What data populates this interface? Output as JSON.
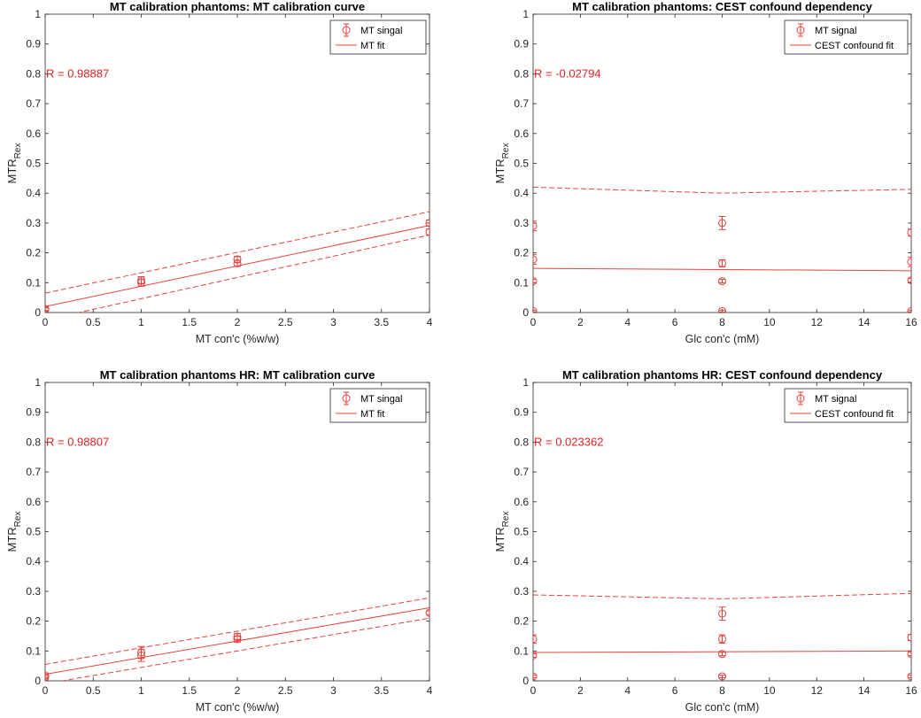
{
  "colors": {
    "data": "#e8413c",
    "r_text": "#e02020",
    "axis": "#262626",
    "text": "#262626",
    "bg": "#ffffff"
  },
  "chart_data": [
    {
      "type": "scatter",
      "title": "MT calibration phantoms: MT calibration curve",
      "xlabel": "MT con'c (%w/w)",
      "ylabel_main": "MTR",
      "ylabel_sub": "Rex",
      "xlim": [
        0,
        4
      ],
      "ylim": [
        0,
        1
      ],
      "xticks": [
        0,
        0.5,
        1,
        1.5,
        2,
        2.5,
        3,
        3.5,
        4
      ],
      "xtick_labels": [
        "0",
        "0.5",
        "1",
        "1.5",
        "2",
        "2.5",
        "3",
        "3.5",
        "4"
      ],
      "yticks": [
        0,
        0.1,
        0.2,
        0.3,
        0.4,
        0.5,
        0.6,
        0.7,
        0.8,
        0.9,
        1
      ],
      "ytick_labels": [
        "0",
        "0.1",
        "0.2",
        "0.3",
        "0.4",
        "0.5",
        "0.6",
        "0.7",
        "0.8",
        "0.9",
        "1"
      ],
      "r_label": "R = 0.98887",
      "r_position_y": 0.8,
      "legend": {
        "position": "top-right",
        "entries": [
          "MT singal",
          "MT fit"
        ]
      },
      "points": [
        {
          "x": 0,
          "y": 0.01,
          "err": 0.005
        },
        {
          "x": 0,
          "y": 0.012,
          "err": 0.005
        },
        {
          "x": 1,
          "y": 0.1,
          "err": 0.012
        },
        {
          "x": 1,
          "y": 0.108,
          "err": 0.012
        },
        {
          "x": 2,
          "y": 0.165,
          "err": 0.01
        },
        {
          "x": 2,
          "y": 0.178,
          "err": 0.01
        },
        {
          "x": 4,
          "y": 0.27,
          "err": 0.01
        },
        {
          "x": 4,
          "y": 0.3,
          "err": 0.01
        }
      ],
      "fit": {
        "x": [
          0,
          4
        ],
        "y": [
          0.02,
          0.292
        ]
      },
      "ci_upper": {
        "x": [
          0,
          4
        ],
        "y": [
          0.065,
          0.338
        ]
      },
      "ci_lower": {
        "x": [
          0,
          4
        ],
        "y": [
          -0.025,
          0.26
        ]
      }
    },
    {
      "type": "scatter",
      "title": "MT calibration phantoms: CEST confound dependency",
      "xlabel": "Glc con'c (mM)",
      "ylabel_main": "MTR",
      "ylabel_sub": "Rex",
      "xlim": [
        0,
        16
      ],
      "ylim": [
        0,
        1
      ],
      "xticks": [
        0,
        2,
        4,
        6,
        8,
        10,
        12,
        14,
        16
      ],
      "xtick_labels": [
        "0",
        "2",
        "4",
        "6",
        "8",
        "10",
        "12",
        "14",
        "16"
      ],
      "yticks": [
        0,
        0.1,
        0.2,
        0.3,
        0.4,
        0.5,
        0.6,
        0.7,
        0.8,
        0.9,
        1
      ],
      "ytick_labels": [
        "0",
        "0.1",
        "0.2",
        "0.3",
        "0.4",
        "0.5",
        "0.6",
        "0.7",
        "0.8",
        "0.9",
        "1"
      ],
      "r_label": "R = -0.02794",
      "r_position_y": 0.8,
      "legend": {
        "position": "top-right",
        "entries": [
          "MT signal",
          "CEST confound fit"
        ]
      },
      "points": [
        {
          "x": 0,
          "y": 0.005,
          "err": 0.003
        },
        {
          "x": 0,
          "y": 0.105,
          "err": 0.006
        },
        {
          "x": 0,
          "y": 0.178,
          "err": 0.016
        },
        {
          "x": 0,
          "y": 0.29,
          "err": 0.016
        },
        {
          "x": 8,
          "y": 0.005,
          "err": 0.003
        },
        {
          "x": 8,
          "y": 0.105,
          "err": 0.006
        },
        {
          "x": 8,
          "y": 0.165,
          "err": 0.012
        },
        {
          "x": 8,
          "y": 0.3,
          "err": 0.022
        },
        {
          "x": 16,
          "y": 0.005,
          "err": 0.003
        },
        {
          "x": 16,
          "y": 0.108,
          "err": 0.006
        },
        {
          "x": 16,
          "y": 0.17,
          "err": 0.016
        },
        {
          "x": 16,
          "y": 0.268,
          "err": 0.012
        }
      ],
      "fit": {
        "x": [
          0,
          16
        ],
        "y": [
          0.148,
          0.14
        ]
      },
      "ci_upper": {
        "x": [
          0,
          8,
          16
        ],
        "y": [
          0.42,
          0.4,
          0.413
        ]
      },
      "ci_lower": null
    },
    {
      "type": "scatter",
      "title": "MT calibration phantoms HR: MT calibration curve",
      "xlabel": "MT con'c (%w/w)",
      "ylabel_main": "MTR",
      "ylabel_sub": "Rex",
      "xlim": [
        0,
        4
      ],
      "ylim": [
        0,
        1
      ],
      "xticks": [
        0,
        0.5,
        1,
        1.5,
        2,
        2.5,
        3,
        3.5,
        4
      ],
      "xtick_labels": [
        "0",
        "0.5",
        "1",
        "1.5",
        "2",
        "2.5",
        "3",
        "3.5",
        "4"
      ],
      "yticks": [
        0,
        0.1,
        0.2,
        0.3,
        0.4,
        0.5,
        0.6,
        0.7,
        0.8,
        0.9,
        1
      ],
      "ytick_labels": [
        "0",
        "0.1",
        "0.2",
        "0.3",
        "0.4",
        "0.5",
        "0.6",
        "0.7",
        "0.8",
        "0.9",
        "1"
      ],
      "r_label": "R = 0.98807",
      "r_position_y": 0.8,
      "legend": {
        "position": "top-right",
        "entries": [
          "MT singal",
          "MT fit"
        ]
      },
      "points": [
        {
          "x": 0,
          "y": 0.012,
          "err": 0.006
        },
        {
          "x": 0,
          "y": 0.018,
          "err": 0.006
        },
        {
          "x": 1,
          "y": 0.085,
          "err": 0.02
        },
        {
          "x": 1,
          "y": 0.095,
          "err": 0.02
        },
        {
          "x": 2,
          "y": 0.14,
          "err": 0.01
        },
        {
          "x": 2,
          "y": 0.148,
          "err": 0.01
        },
        {
          "x": 4,
          "y": 0.228,
          "err": 0.006
        }
      ],
      "fit": {
        "x": [
          0,
          4
        ],
        "y": [
          0.022,
          0.245
        ]
      },
      "ci_upper": {
        "x": [
          0,
          4
        ],
        "y": [
          0.055,
          0.278
        ]
      },
      "ci_lower": {
        "x": [
          0,
          4
        ],
        "y": [
          -0.01,
          0.21
        ]
      }
    },
    {
      "type": "scatter",
      "title": "MT calibration phantoms HR: CEST confound dependency",
      "xlabel": "Glc con'c (mM)",
      "ylabel_main": "MTR",
      "ylabel_sub": "Rex",
      "xlim": [
        0,
        16
      ],
      "ylim": [
        0,
        1
      ],
      "xticks": [
        0,
        2,
        4,
        6,
        8,
        10,
        12,
        14,
        16
      ],
      "xtick_labels": [
        "0",
        "2",
        "4",
        "6",
        "8",
        "10",
        "12",
        "14",
        "16"
      ],
      "yticks": [
        0,
        0.1,
        0.2,
        0.3,
        0.4,
        0.5,
        0.6,
        0.7,
        0.8,
        0.9,
        1
      ],
      "ytick_labels": [
        "0",
        "0.1",
        "0.2",
        "0.3",
        "0.4",
        "0.5",
        "0.6",
        "0.7",
        "0.8",
        "0.9",
        "1"
      ],
      "r_label": "R = 0.023362",
      "r_position_y": 0.8,
      "legend": {
        "position": "top-right",
        "entries": [
          "MT signal",
          "CEST confound fit"
        ]
      },
      "points": [
        {
          "x": 0,
          "y": 0.015,
          "err": 0.004
        },
        {
          "x": 0,
          "y": 0.085,
          "err": 0.006
        },
        {
          "x": 0,
          "y": 0.14,
          "err": 0.014
        },
        {
          "x": 8,
          "y": 0.015,
          "err": 0.004
        },
        {
          "x": 8,
          "y": 0.09,
          "err": 0.006
        },
        {
          "x": 8,
          "y": 0.14,
          "err": 0.014
        },
        {
          "x": 8,
          "y": 0.225,
          "err": 0.022
        },
        {
          "x": 16,
          "y": 0.015,
          "err": 0.004
        },
        {
          "x": 16,
          "y": 0.09,
          "err": 0.006
        },
        {
          "x": 16,
          "y": 0.145,
          "err": 0.01
        }
      ],
      "fit": {
        "x": [
          0,
          16
        ],
        "y": [
          0.095,
          0.1
        ]
      },
      "ci_upper": {
        "x": [
          0,
          8,
          16
        ],
        "y": [
          0.288,
          0.275,
          0.293
        ]
      },
      "ci_lower": null
    }
  ]
}
